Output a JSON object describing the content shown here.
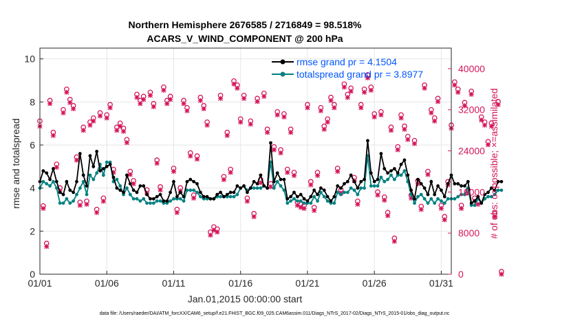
{
  "chart_data": {
    "type": "line",
    "title": "Northern Hemisphere 2676585 / 2716849 = 98.518%",
    "subtitle": "ACARS_V_WIND_COMPONENT @ 200 hPa",
    "xlabel": "Jan.01,2015 00:00:00 start",
    "ylabel_left": "rmse and totalspread",
    "ylabel_right": "# of obs: o=possible; ×=assimilated",
    "x_ticks": [
      "01/01",
      "01/06",
      "01/11",
      "01/16",
      "01/21",
      "01/26",
      "01/31"
    ],
    "x_tick_days": [
      0,
      5,
      10,
      15,
      20,
      25,
      30
    ],
    "xlim_days": [
      0,
      30.75
    ],
    "ylim_left": [
      0,
      10.5
    ],
    "y_ticks_left": [
      "0",
      "2",
      "4",
      "6",
      "8",
      "10"
    ],
    "ylim_right": [
      0,
      44000
    ],
    "y_ticks_right": [
      "0",
      "8000",
      "16000",
      "24000",
      "32000",
      "40000"
    ],
    "grid": true,
    "legend_position": "top-right",
    "colors": {
      "rmse": "#000000",
      "totalspread": "#008080",
      "obs": "#d4145a",
      "legend_text": "#0055ff"
    },
    "time_step_days": 0.25,
    "series": [
      {
        "name": "rmse grand pr = 4.1504",
        "values": [
          4.3,
          4.8,
          4.7,
          4.4,
          4.9,
          4.3,
          3.8,
          3.7,
          4.3,
          3.9,
          3.8,
          4.3,
          5.6,
          4.6,
          4.1,
          5.5,
          5.0,
          5.7,
          4.8,
          4.9,
          5.0,
          5.1,
          4.5,
          4.0,
          3.9,
          3.8,
          4.6,
          4.2,
          3.9,
          3.8,
          4.1,
          4.1,
          3.7,
          3.5,
          3.5,
          3.6,
          3.7,
          3.4,
          3.4,
          3.8,
          4.3,
          3.6,
          3.8,
          3.6,
          4.3,
          4.4,
          4.3,
          4.2,
          3.8,
          3.6,
          3.6,
          3.5,
          3.5,
          3.7,
          3.8,
          3.6,
          3.7,
          3.8,
          3.8,
          4.1,
          4.0,
          4.1,
          3.8,
          4.0,
          4.3,
          4.2,
          4.6,
          4.1,
          4.0,
          6.1,
          4.3,
          4.7,
          4.4,
          4.4,
          3.5,
          3.6,
          3.8,
          3.6,
          3.7,
          3.5,
          3.4,
          3.6,
          3.9,
          3.7,
          4.0,
          3.9,
          3.6,
          3.4,
          3.6,
          4.1,
          4.0,
          4.2,
          4.3,
          4.6,
          4.3,
          4.0,
          4.3,
          4.4,
          6.2,
          4.7,
          4.3,
          4.4,
          5.6,
          4.9,
          4.7,
          4.8,
          4.9,
          4.7,
          5.1,
          5.3,
          4.6,
          3.9,
          3.5,
          4.4,
          4.2,
          4.0,
          3.7,
          4.3,
          3.7,
          4.1,
          3.9,
          3.6,
          4.2,
          4.6,
          4.2,
          4.2,
          4.1,
          4.1,
          4.3,
          3.3,
          3.4,
          3.6,
          3.3,
          3.7,
          3.8,
          4.0,
          3.9,
          4.3,
          4.3
        ]
      },
      {
        "name": "totalspread grand pr = 3.8977",
        "values": [
          4.0,
          4.3,
          4.2,
          4.1,
          4.3,
          4.0,
          3.3,
          3.3,
          3.5,
          3.3,
          3.4,
          3.7,
          4.0,
          4.3,
          3.7,
          4.6,
          4.4,
          4.7,
          5.1,
          4.6,
          5.2,
          5.2,
          4.3,
          4.4,
          4.1,
          3.7,
          4.0,
          3.7,
          3.5,
          3.5,
          3.4,
          3.5,
          3.3,
          3.3,
          3.3,
          3.4,
          3.4,
          3.3,
          3.3,
          3.4,
          3.5,
          3.5,
          3.5,
          3.4,
          3.9,
          3.9,
          3.9,
          3.8,
          3.6,
          3.5,
          3.5,
          3.5,
          3.5,
          3.6,
          3.6,
          3.6,
          3.6,
          3.6,
          3.6,
          3.7,
          4.0,
          4.1,
          3.9,
          4.0,
          4.0,
          4.0,
          4.0,
          4.1,
          4.0,
          5.2,
          4.0,
          4.3,
          4.1,
          3.9,
          3.3,
          3.4,
          3.5,
          3.4,
          3.4,
          3.3,
          3.3,
          3.3,
          3.6,
          3.4,
          3.8,
          3.6,
          3.4,
          3.3,
          3.3,
          3.8,
          3.7,
          3.8,
          3.8,
          4.0,
          3.9,
          3.7,
          4.0,
          4.0,
          5.5,
          4.1,
          4.1,
          4.1,
          4.5,
          4.3,
          4.4,
          4.6,
          4.4,
          4.6,
          4.6,
          4.8,
          4.3,
          3.7,
          3.3,
          3.6,
          3.7,
          3.5,
          3.3,
          3.5,
          3.3,
          3.5,
          3.4,
          3.3,
          3.5,
          3.5,
          3.5,
          3.6,
          3.7,
          3.7,
          4.0,
          3.2,
          3.2,
          3.5,
          3.3,
          3.5,
          3.6,
          3.6,
          3.7,
          3.9,
          3.9
        ]
      },
      {
        "name": "# of obs possible",
        "axis": "right",
        "values": [
          29800,
          13300,
          6000,
          33800,
          27600,
          21400,
          16800,
          32000,
          36000,
          34000,
          32800,
          22800,
          14000,
          28600,
          14200,
          29600,
          30400,
          12600,
          31400,
          14800,
          31000,
          33000,
          20400,
          28600,
          29400,
          28400,
          26200,
          20000,
          18200,
          35000,
          33800,
          34600,
          16400,
          35400,
          33200,
          22200,
          17000,
          36400,
          33800,
          34600,
          20600,
          12600,
          16800,
          33800,
          32400,
          23600,
          15400,
          23000,
          34400,
          32800,
          29600,
          8200,
          9200,
          8800,
          34800,
          19000,
          27600,
          20400,
          37600,
          36800,
          30200,
          34800,
          14800,
          29800,
          11800,
          34200,
          18400,
          35200,
          28200,
          17600,
          24800,
          31600,
          24200,
          31200,
          20400,
          28200,
          19800,
          14000,
          13600,
          13400,
          33000,
          18000,
          13000,
          19800,
          32400,
          28800,
          30200,
          34400,
          33000,
          20600,
          16400,
          37000,
          35000,
          36200,
          18800,
          14200,
          33000,
          36000,
          38800,
          36400,
          31200,
          16000,
          31600,
          15000,
          12000,
          28600,
          7000,
          24800,
          31000,
          28800,
          26800,
          15400,
          26000,
          18200,
          13200,
          36800,
          20000,
          32000,
          30400,
          34200,
          13400,
          11200,
          18000,
          29000,
          37400,
          36000,
          13400,
          33400,
          16400,
          35600,
          14800,
          14200,
          30600,
          29600,
          25800,
          29400,
          11800,
          33600,
          500
        ]
      },
      {
        "name": "# of obs assimilated",
        "axis": "right",
        "values": [
          28800,
          12800,
          5400,
          33200,
          27000,
          20800,
          16200,
          31400,
          35400,
          33400,
          32200,
          22200,
          13400,
          28000,
          13600,
          29000,
          29800,
          12000,
          30800,
          14200,
          30400,
          32400,
          19800,
          28000,
          28800,
          27800,
          25600,
          19400,
          17600,
          34400,
          33200,
          34000,
          15800,
          34800,
          32600,
          21600,
          16400,
          35800,
          33200,
          34000,
          20000,
          12000,
          16200,
          33200,
          31800,
          23000,
          14800,
          22400,
          33800,
          32200,
          29000,
          7600,
          8600,
          8200,
          34200,
          18400,
          27000,
          19800,
          37000,
          36200,
          29600,
          34200,
          14200,
          29200,
          11200,
          33600,
          17800,
          34600,
          27600,
          17000,
          24200,
          31000,
          23600,
          30600,
          19800,
          27600,
          19200,
          13400,
          13000,
          12800,
          32400,
          17400,
          12400,
          19200,
          31800,
          28200,
          29600,
          33800,
          32400,
          20000,
          15800,
          36400,
          34400,
          35600,
          18200,
          13600,
          32400,
          35400,
          38200,
          35800,
          30600,
          15400,
          31000,
          14400,
          11400,
          28000,
          6400,
          24200,
          30400,
          28200,
          26200,
          14800,
          25400,
          17600,
          12600,
          36200,
          19400,
          31400,
          29800,
          33600,
          12800,
          10600,
          17400,
          28400,
          36800,
          35400,
          12800,
          32800,
          15800,
          35000,
          14200,
          13600,
          30000,
          29000,
          25200,
          28800,
          11200,
          33000,
          0
        ]
      }
    ]
  },
  "footer": {
    "data_file": "data file: /Users/raeder/DAI/ATM_forcXX/CAM6_setup/f.e21.FHIST_BGC.f09_025.CAM6assim.011/Diags_NTrS_2017-02/Diags_NTrS_2015-01/obs_diag_output.nc"
  }
}
